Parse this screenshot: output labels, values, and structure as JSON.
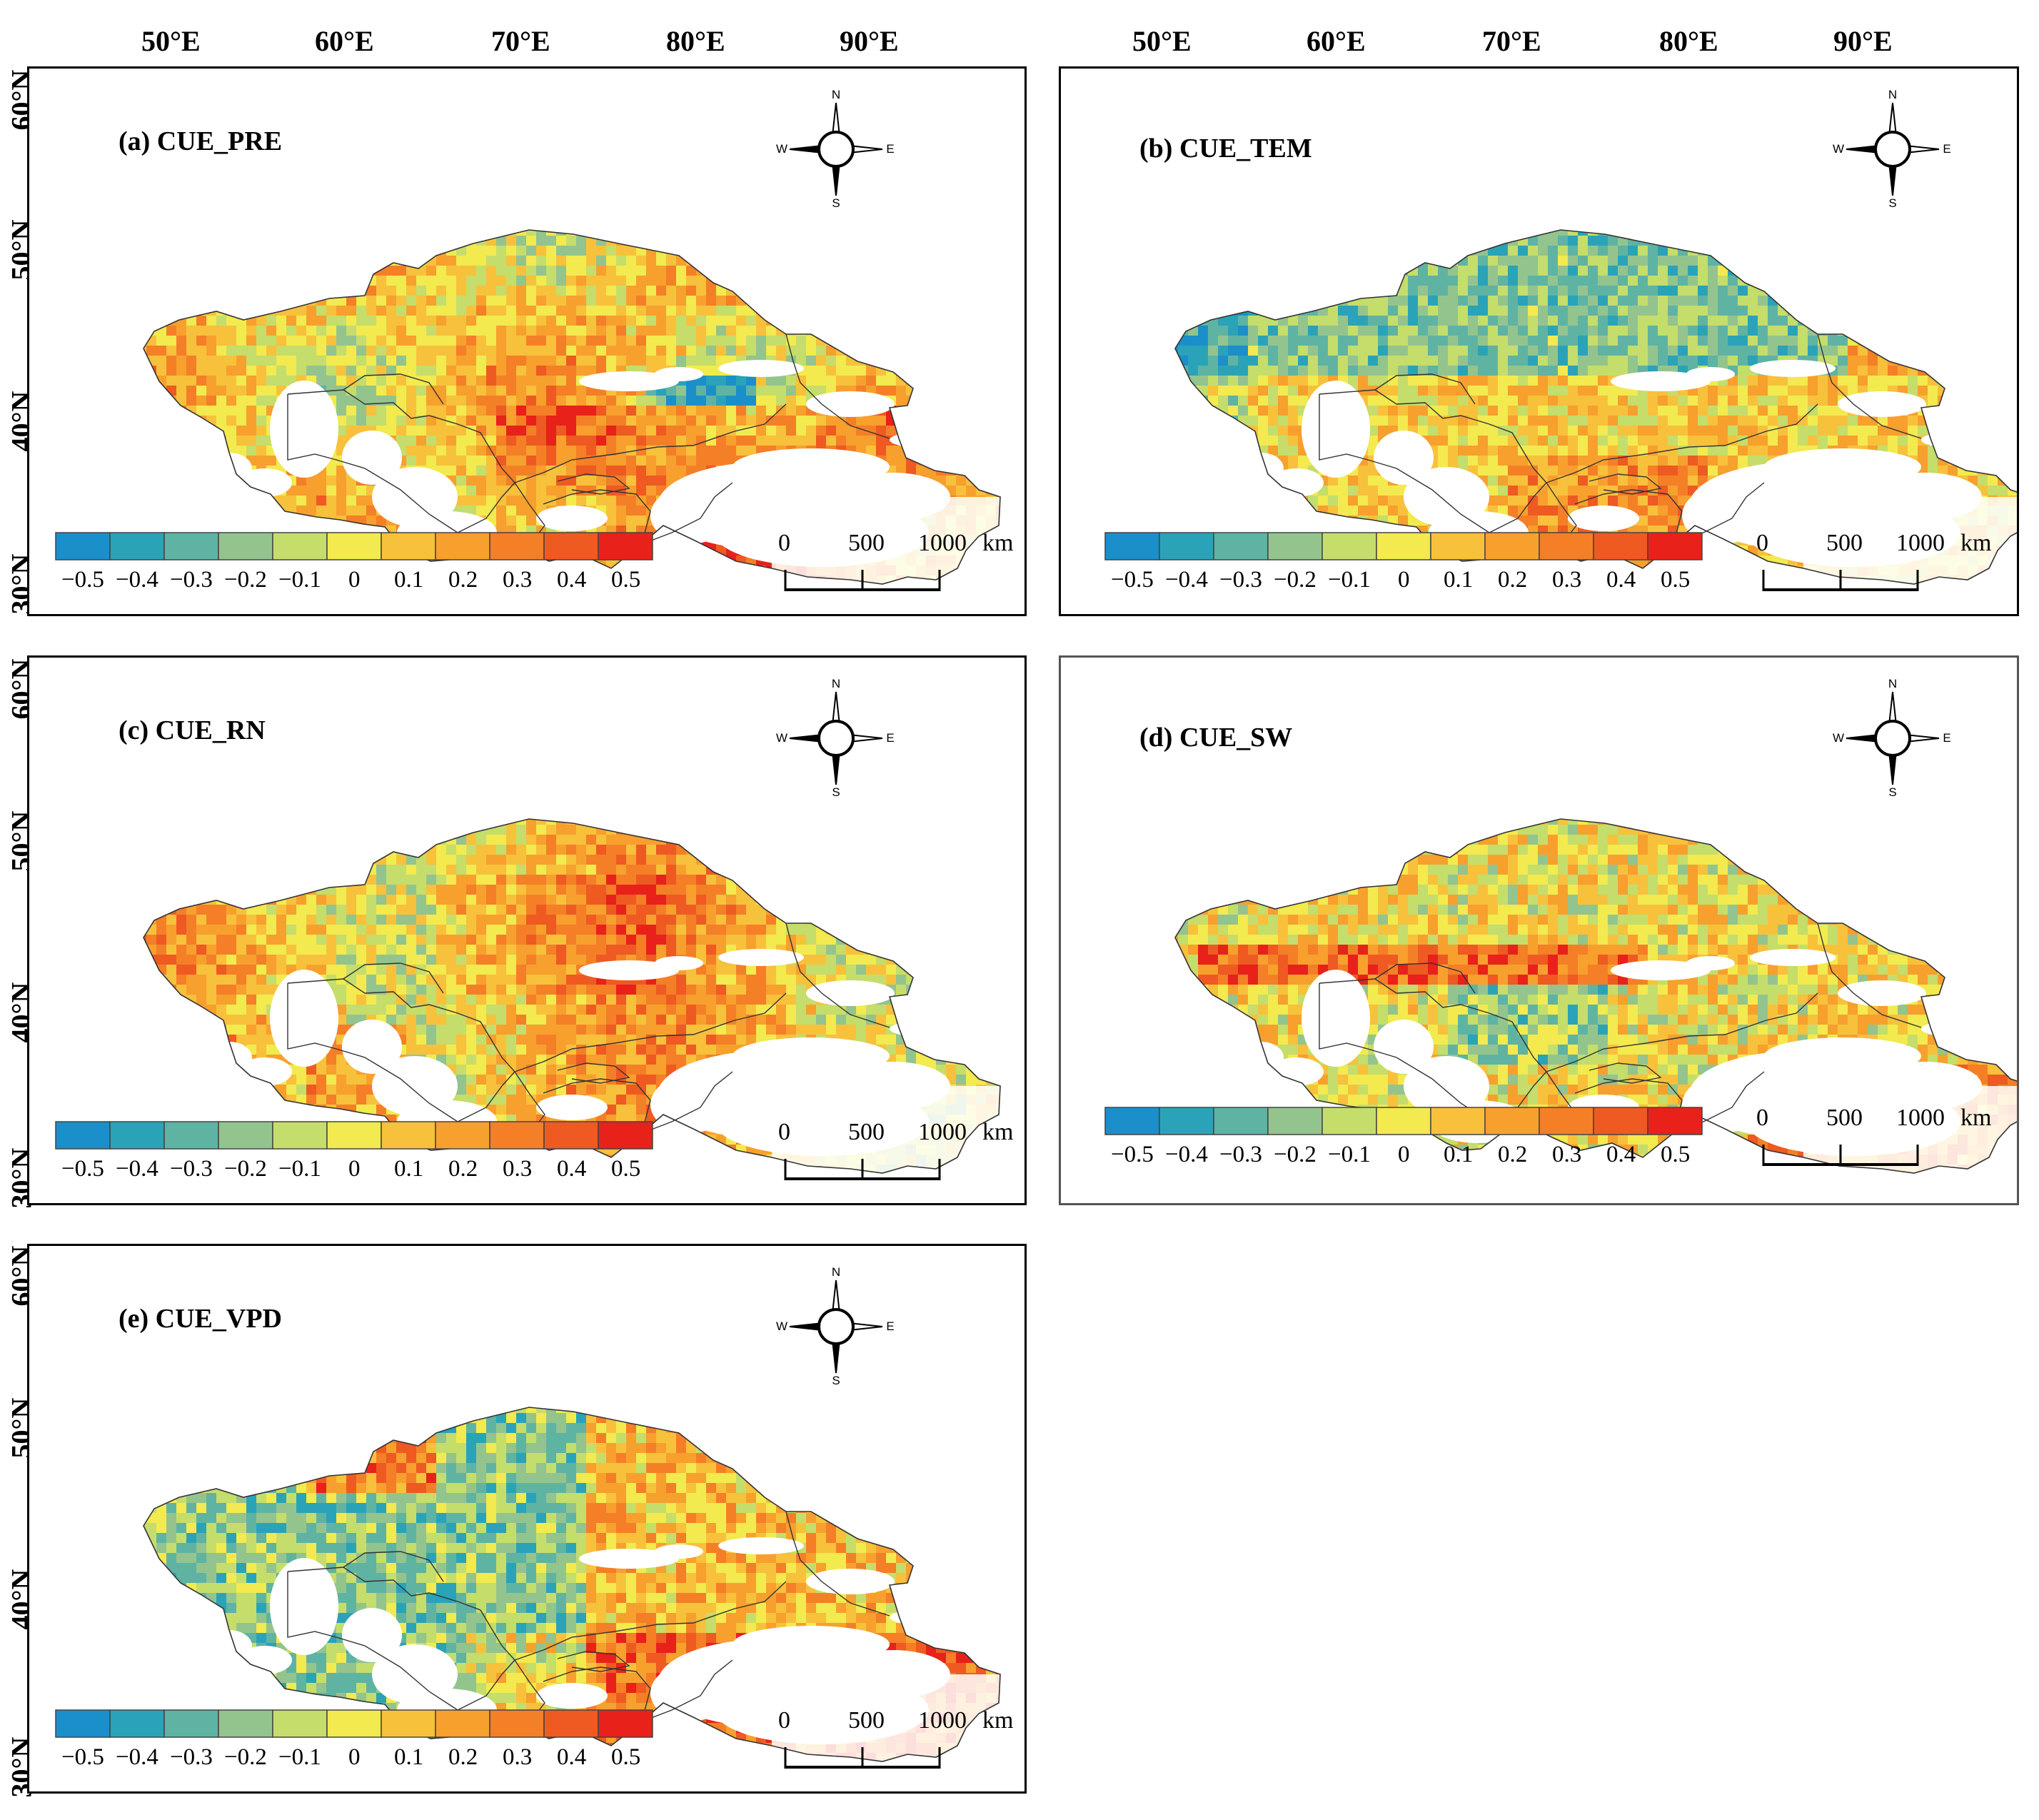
{
  "figure": {
    "lon_ticks": [
      "50°E",
      "60°E",
      "70°E",
      "80°E",
      "90°E"
    ],
    "lat_ticks": [
      "60°N",
      "50°N",
      "40°N",
      "30°N"
    ],
    "panels": [
      {
        "id": "a",
        "title": "(a) CUE_PRE",
        "pattern": "mixed_warm",
        "border_color": "#000000"
      },
      {
        "id": "b",
        "title": "(b) CUE_TEM",
        "pattern": "cool_north",
        "border_color": "#000000"
      },
      {
        "id": "c",
        "title": "(c) CUE_RN",
        "pattern": "warm_center",
        "border_color": "#000000"
      },
      {
        "id": "d",
        "title": "(d) CUE_SW",
        "pattern": "warm_band",
        "border_color": "#555555"
      },
      {
        "id": "e",
        "title": "(e) CUE_VPD",
        "pattern": "cool_west",
        "border_color": "#000000"
      }
    ],
    "compass": {
      "n": "N",
      "s": "S",
      "e": "E",
      "w": "W"
    },
    "colorbar": {
      "colors": [
        "#1a8fc9",
        "#2aa3b8",
        "#5fb3a3",
        "#93c48e",
        "#c5dd6b",
        "#f2ea4e",
        "#f8c13b",
        "#f7a02e",
        "#f47f27",
        "#ee5a21",
        "#e8211a"
      ],
      "labels": [
        "−0.5",
        "−0.4",
        "−0.3",
        "−0.2",
        "−0.1",
        "0",
        "0.1",
        "0.2",
        "0.3",
        "0.4",
        "0.5"
      ]
    },
    "scalebar": {
      "labels": [
        "0",
        "500",
        "1000"
      ],
      "unit": "km"
    }
  }
}
